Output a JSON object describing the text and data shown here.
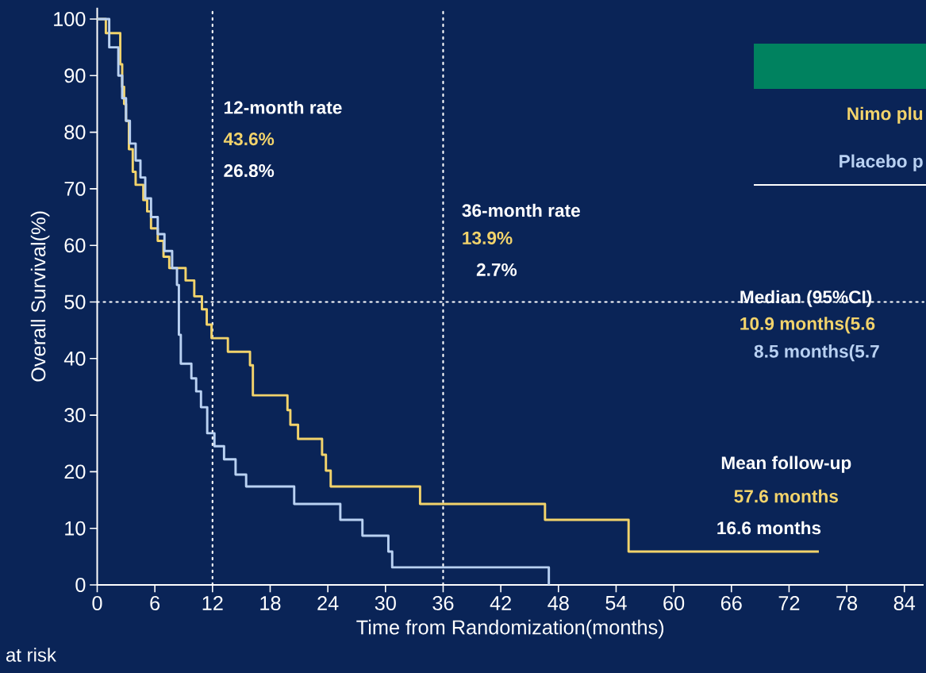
{
  "chart_data": {
    "type": "step",
    "xlabel": "Time from Randomization(months)",
    "ylabel": "Overall Survival(%)",
    "series": [
      {
        "name": "Nimo plu",
        "color": "#f2d36b",
        "x": [
          0,
          0.9,
          2.4,
          2.6,
          2.8,
          3.0,
          3.3,
          3.7,
          4.0,
          4.8,
          5.2,
          5.6,
          6.3,
          6.9,
          7.5,
          9.2,
          10.1,
          10.9,
          11.4,
          11.9,
          13.6,
          15.9,
          16.2,
          19.8,
          20.1,
          20.9,
          23.4,
          23.8,
          24.3,
          33.6,
          46.6,
          55.3,
          75.1
        ],
        "values": [
          100,
          97.5,
          92,
          88,
          85,
          82,
          77,
          73,
          70.7,
          68,
          66,
          63,
          60.8,
          58,
          56,
          53.8,
          51,
          48.7,
          46,
          43.6,
          41.2,
          38.8,
          33.5,
          30.9,
          28.3,
          25.8,
          23,
          20.2,
          17.4,
          14.3,
          11.5,
          5.9,
          5.9
        ]
      },
      {
        "name": "Placebo p",
        "color": "#b9d1f2",
        "x": [
          0,
          1.25,
          2.2,
          2.6,
          3.0,
          3.4,
          4.0,
          4.5,
          5.0,
          5.6,
          6.3,
          7.0,
          7.8,
          8.3,
          8.5,
          8.7,
          9.8,
          10.3,
          10.8,
          11.45,
          12.2,
          13.2,
          14.4,
          15.5,
          20.5,
          25.3,
          27.6,
          30.3,
          30.7,
          47.0
        ],
        "values": [
          100,
          95,
          90,
          86,
          82,
          78,
          75,
          72,
          68.3,
          65,
          62,
          59,
          56,
          53,
          44.2,
          39.1,
          36.5,
          34.2,
          31.4,
          26.8,
          24.5,
          22.2,
          19.5,
          17.4,
          14.3,
          11.5,
          8.7,
          5.9,
          3.1,
          0
        ]
      }
    ],
    "xlim": [
      0,
      86
    ],
    "xticks": [
      0,
      6,
      12,
      18,
      24,
      30,
      36,
      42,
      48,
      54,
      60,
      66,
      72,
      78,
      84
    ],
    "ylim": [
      0,
      102
    ],
    "yticks": [
      0,
      10,
      20,
      30,
      40,
      50,
      60,
      70,
      80,
      90,
      100
    ],
    "ref_lines": [
      {
        "axis": "x",
        "value": 12,
        "line_style": "dotted"
      },
      {
        "axis": "x",
        "value": 36,
        "line_style": "dotted"
      },
      {
        "axis": "y",
        "value": 50,
        "line_style": "dotted"
      }
    ],
    "annotations": [
      "12-month rate",
      "43.6%",
      "26.8%",
      "36-month rate",
      "13.9%",
      "2.7%",
      "Median (95%CI)",
      "10.9 months(5.6",
      "8.5 months(5.7",
      "Mean follow-up",
      "57.6 months",
      "16.6 months",
      "at risk"
    ],
    "legend": "top right",
    "grid": false,
    "marker": "none",
    "line_style": "solid"
  }
}
